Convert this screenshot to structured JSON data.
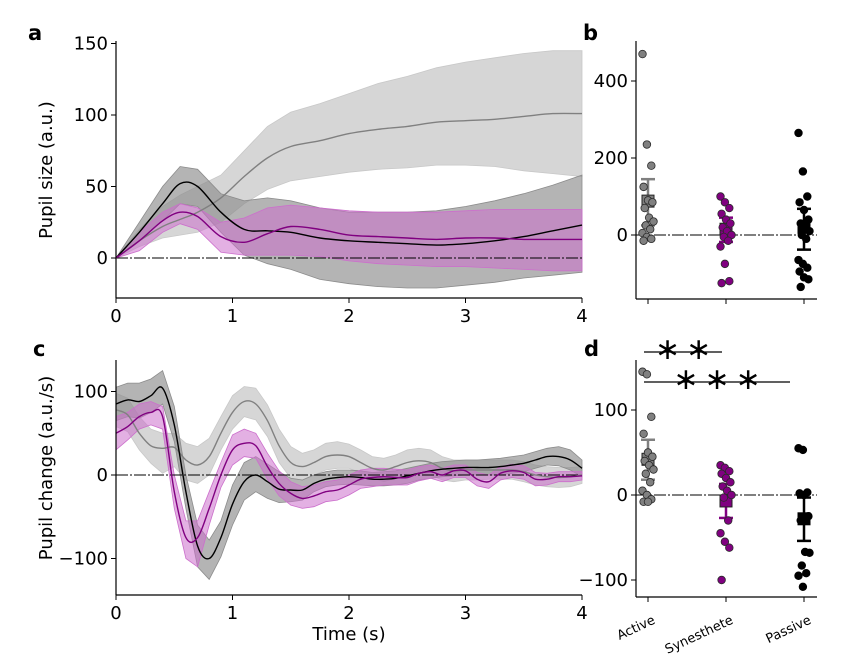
{
  "figure": {
    "panels": [
      "a",
      "b",
      "c",
      "d"
    ]
  },
  "colors": {
    "active": "#808080",
    "active_band": "#c8c8c8",
    "passive": "#000000",
    "passive_band": "#8c8c8c",
    "synesthete": "#800080",
    "synesthete_band": "#cc6fcc"
  },
  "chart_data": [
    {
      "panel": "a",
      "type": "line",
      "title": "",
      "xlabel": "",
      "ylabel": "Pupil size (a.u.)",
      "xlim": [
        0,
        4
      ],
      "ylim": [
        -28,
        150
      ],
      "xticks": [
        "0",
        "1",
        "2",
        "3",
        "4"
      ],
      "yticks": [
        "0",
        "50",
        "100",
        "150"
      ],
      "zero_line": true,
      "x": [
        0,
        0.2,
        0.4,
        0.55,
        0.7,
        0.9,
        1.1,
        1.3,
        1.5,
        1.75,
        2.0,
        2.25,
        2.5,
        2.75,
        3.0,
        3.25,
        3.5,
        3.75,
        4.0
      ],
      "series": [
        {
          "name": "Active",
          "color_key": "active",
          "mean": [
            0,
            12,
            22,
            27,
            32,
            42,
            57,
            70,
            78,
            82,
            87,
            90,
            92,
            95,
            96,
            97,
            99,
            101,
            101
          ],
          "upper": [
            0,
            20,
            36,
            44,
            50,
            58,
            75,
            92,
            102,
            108,
            115,
            122,
            127,
            133,
            137,
            140,
            143,
            145,
            145
          ],
          "lower": [
            0,
            8,
            14,
            16,
            18,
            25,
            38,
            48,
            54,
            57,
            60,
            62,
            63,
            65,
            65,
            64,
            61,
            59,
            57
          ]
        },
        {
          "name": "Passive",
          "color_key": "passive",
          "mean": [
            0,
            18,
            38,
            52,
            50,
            32,
            20,
            19,
            18,
            14,
            12,
            11,
            10,
            9,
            10,
            12,
            15,
            19,
            23
          ],
          "upper": [
            0,
            25,
            50,
            64,
            62,
            45,
            40,
            42,
            40,
            35,
            32,
            32,
            32,
            33,
            36,
            40,
            45,
            51,
            58
          ],
          "lower": [
            0,
            12,
            26,
            38,
            36,
            18,
            2,
            -4,
            -8,
            -15,
            -18,
            -20,
            -21,
            -21,
            -19,
            -17,
            -14,
            -12,
            -10
          ]
        },
        {
          "name": "Synesthete",
          "color_key": "synesthete",
          "mean": [
            0,
            12,
            26,
            32,
            29,
            15,
            11,
            17,
            22,
            20,
            16,
            15,
            14,
            13,
            14,
            14,
            13,
            13,
            13
          ],
          "upper": [
            0,
            18,
            32,
            38,
            35,
            25,
            28,
            35,
            37,
            35,
            33,
            32,
            32,
            32,
            33,
            34,
            34,
            34,
            34
          ],
          "lower": [
            0,
            5,
            18,
            24,
            20,
            4,
            2,
            2,
            2,
            1,
            -2,
            -4,
            -5,
            -6,
            -6,
            -7,
            -8,
            -9,
            -9
          ]
        }
      ]
    },
    {
      "panel": "b",
      "type": "scatter",
      "ylabel": "",
      "ylim": [
        -166,
        500
      ],
      "yticks": [
        "0",
        "200",
        "400"
      ],
      "categories": [
        "Active",
        "Synesthete",
        "Passive"
      ],
      "zero_line": true,
      "groups": [
        {
          "name": "Active",
          "color_key": "active",
          "mean": 88,
          "err_upper": 145,
          "err_lower": 25,
          "points": [
            470,
            235,
            180,
            125,
            90,
            85,
            70,
            45,
            35,
            25,
            15,
            5,
            -5,
            -10,
            -15
          ]
        },
        {
          "name": "Synesthete",
          "color_key": "synesthete",
          "mean": 15,
          "err_upper": 45,
          "err_lower": -18,
          "points": [
            100,
            85,
            70,
            55,
            40,
            30,
            20,
            10,
            0,
            -5,
            -15,
            -30,
            -75,
            -120,
            -125
          ]
        },
        {
          "name": "Passive",
          "color_key": "passive",
          "mean": 20,
          "err_upper": 68,
          "err_lower": -38,
          "points": [
            265,
            165,
            100,
            85,
            65,
            40,
            30,
            20,
            10,
            0,
            -10,
            -65,
            -75,
            -85,
            -95,
            -110,
            -115,
            -135
          ]
        }
      ]
    },
    {
      "panel": "c",
      "type": "line",
      "xlabel": "Time (s)",
      "ylabel": "Pupil change (a.u./s)",
      "xlim": [
        0,
        4
      ],
      "ylim": [
        -143,
        140
      ],
      "xticks": [
        "0",
        "1",
        "2",
        "3",
        "4"
      ],
      "yticks": [
        "−100",
        "0",
        "100"
      ],
      "zero_line": true,
      "x": [
        0,
        0.1,
        0.2,
        0.3,
        0.4,
        0.5,
        0.6,
        0.7,
        0.8,
        0.9,
        1.0,
        1.1,
        1.2,
        1.3,
        1.4,
        1.5,
        1.6,
        1.7,
        1.8,
        1.9,
        2.0,
        2.1,
        2.2,
        2.3,
        2.4,
        2.5,
        2.6,
        2.7,
        2.8,
        2.9,
        3.0,
        3.1,
        3.2,
        3.3,
        3.4,
        3.5,
        3.6,
        3.7,
        3.8,
        3.9,
        4.0
      ],
      "series": [
        {
          "name": "Active",
          "color_key": "active",
          "mean": [
            78,
            72,
            50,
            35,
            32,
            33,
            18,
            12,
            22,
            50,
            75,
            88,
            85,
            65,
            35,
            15,
            10,
            15,
            22,
            24,
            22,
            15,
            8,
            6,
            10,
            15,
            17,
            15,
            8,
            5,
            6,
            6,
            6,
            6,
            6,
            4,
            0,
            -2,
            -3,
            -2,
            0
          ],
          "upper": [
            98,
            92,
            70,
            55,
            50,
            50,
            38,
            34,
            44,
            70,
            95,
            106,
            104,
            84,
            55,
            34,
            26,
            30,
            38,
            40,
            37,
            30,
            22,
            20,
            24,
            30,
            32,
            30,
            22,
            18,
            18,
            18,
            18,
            18,
            18,
            16,
            12,
            10,
            9,
            9,
            10
          ],
          "lower": [
            58,
            52,
            30,
            14,
            2,
            10,
            -6,
            -10,
            0,
            30,
            55,
            70,
            66,
            46,
            15,
            -4,
            -6,
            0,
            6,
            8,
            8,
            2,
            -4,
            -8,
            -4,
            0,
            2,
            0,
            -6,
            -8,
            -6,
            -6,
            -5,
            -5,
            -5,
            -8,
            -12,
            -14,
            -15,
            -14,
            -10
          ]
        },
        {
          "name": "Passive",
          "color_key": "passive",
          "mean": [
            85,
            90,
            88,
            95,
            104,
            60,
            -20,
            -85,
            -100,
            -75,
            -35,
            -8,
            0,
            -8,
            -17,
            -18,
            -18,
            -10,
            -5,
            -3,
            -2,
            -3,
            -5,
            -5,
            -4,
            -1,
            2,
            5,
            7,
            8,
            9,
            9,
            9,
            10,
            12,
            14,
            18,
            22,
            22,
            18,
            8
          ],
          "upper": [
            105,
            110,
            110,
            115,
            125,
            82,
            0,
            -60,
            -78,
            -55,
            -12,
            15,
            22,
            13,
            4,
            -4,
            -6,
            0,
            4,
            6,
            6,
            5,
            3,
            4,
            5,
            8,
            11,
            14,
            16,
            17,
            18,
            18,
            19,
            20,
            22,
            24,
            28,
            32,
            34,
            30,
            18
          ],
          "lower": [
            65,
            70,
            68,
            75,
            85,
            40,
            -40,
            -110,
            -125,
            -98,
            -60,
            -30,
            -20,
            -28,
            -33,
            -32,
            -30,
            -20,
            -14,
            -12,
            -11,
            -12,
            -13,
            -13,
            -12,
            -10,
            -6,
            -4,
            -2,
            -1,
            0,
            0,
            0,
            0,
            2,
            4,
            8,
            12,
            11,
            6,
            -2
          ]
        },
        {
          "name": "Synesthete",
          "color_key": "synesthete",
          "mean": [
            50,
            58,
            70,
            75,
            70,
            -20,
            -75,
            -75,
            -40,
            0,
            30,
            38,
            35,
            10,
            -10,
            -22,
            -28,
            -25,
            -20,
            -18,
            -12,
            -5,
            -3,
            -2,
            -3,
            -3,
            2,
            4,
            0,
            5,
            5,
            -5,
            -8,
            2,
            5,
            3,
            -5,
            -5,
            -2,
            -2,
            -1
          ],
          "upper": [
            70,
            75,
            85,
            88,
            82,
            0,
            -55,
            -55,
            -20,
            15,
            48,
            55,
            50,
            26,
            5,
            -8,
            -14,
            -12,
            -8,
            -6,
            0,
            6,
            8,
            8,
            7,
            6,
            10,
            12,
            8,
            12,
            12,
            3,
            0,
            10,
            13,
            11,
            3,
            2,
            4,
            4,
            4
          ],
          "lower": [
            30,
            42,
            55,
            60,
            55,
            -40,
            -100,
            -110,
            -60,
            -15,
            12,
            22,
            20,
            -5,
            -25,
            -36,
            -40,
            -38,
            -32,
            -30,
            -24,
            -16,
            -14,
            -12,
            -12,
            -12,
            -7,
            -4,
            -8,
            -3,
            -3,
            -13,
            -16,
            -6,
            -3,
            -5,
            -13,
            -12,
            -8,
            -8,
            -6
          ]
        }
      ]
    },
    {
      "panel": "d",
      "type": "scatter",
      "ylim": [
        -120,
        160
      ],
      "yticks": [
        "−100",
        "0",
        "100"
      ],
      "categories": [
        "Active",
        "Synesthete",
        "Passive"
      ],
      "zero_line": true,
      "significance": [
        {
          "label": "**",
          "from": "Active",
          "to": "Synesthete"
        },
        {
          "label": "***",
          "from": "Active",
          "to": "Passive"
        }
      ],
      "groups": [
        {
          "name": "Active",
          "color_key": "active",
          "mean": 42,
          "err_upper": 65,
          "err_lower": 18,
          "points": [
            145,
            142,
            92,
            72,
            50,
            45,
            40,
            35,
            30,
            25,
            15,
            5,
            0,
            -5,
            -8,
            -8
          ]
        },
        {
          "name": "Synesthete",
          "color_key": "synesthete",
          "mean": -7,
          "err_upper": 13,
          "err_lower": -27,
          "points": [
            35,
            32,
            28,
            25,
            20,
            15,
            10,
            5,
            0,
            -3,
            -30,
            -45,
            -55,
            -62,
            -100
          ]
        },
        {
          "name": "Passive",
          "color_key": "passive",
          "mean": -28,
          "err_upper": -3,
          "err_lower": -54,
          "points": [
            55,
            53,
            3,
            2,
            0,
            -25,
            -30,
            -67,
            -68,
            -83,
            -92,
            -95,
            -108
          ]
        }
      ]
    }
  ]
}
